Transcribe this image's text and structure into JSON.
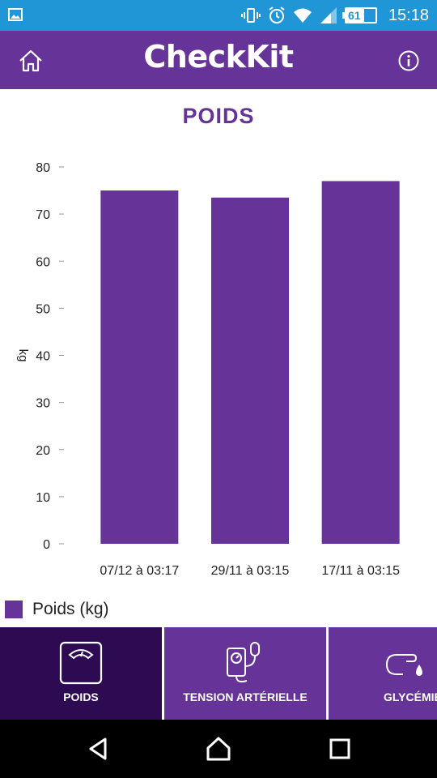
{
  "status_bar": {
    "battery": "61 %",
    "battery_level": 0.61,
    "time": "15:18",
    "icons": [
      "gallery-icon",
      "vibrate-icon",
      "alarm-icon",
      "wifi-icon",
      "signal-icon",
      "battery-icon"
    ],
    "color": "#2196d6"
  },
  "app_bar": {
    "title": "CheckKit",
    "left_icon": "home-icon",
    "right_icon": "info-icon",
    "color": "#663399"
  },
  "page": {
    "title": "POIDS"
  },
  "chart_data": {
    "type": "bar",
    "categories": [
      "07/12 à 03:17",
      "29/11 à 03:15",
      "17/11 à 03:15"
    ],
    "series": [
      {
        "name": "Poids (kg)",
        "values": [
          75,
          73.5,
          77
        ]
      }
    ],
    "ylabel": "kg",
    "yticks": [
      "0",
      "10",
      "20",
      "30",
      "40",
      "50",
      "60",
      "70",
      "80"
    ],
    "ylim": [
      0,
      80
    ],
    "grid": false,
    "legend": "bottom-left",
    "bar_color": "#663399"
  },
  "tabs": [
    {
      "label": "POIDS",
      "icon": "scale-icon",
      "active": true
    },
    {
      "label": "TENSION ARTÉRIELLE",
      "icon": "blood-pressure-icon",
      "active": false
    },
    {
      "label": "GLYCÉMIE",
      "icon": "finger-drop-icon",
      "active": false
    }
  ],
  "nav_bar": {
    "buttons": [
      "back-icon",
      "home-icon",
      "recents-icon"
    ]
  }
}
